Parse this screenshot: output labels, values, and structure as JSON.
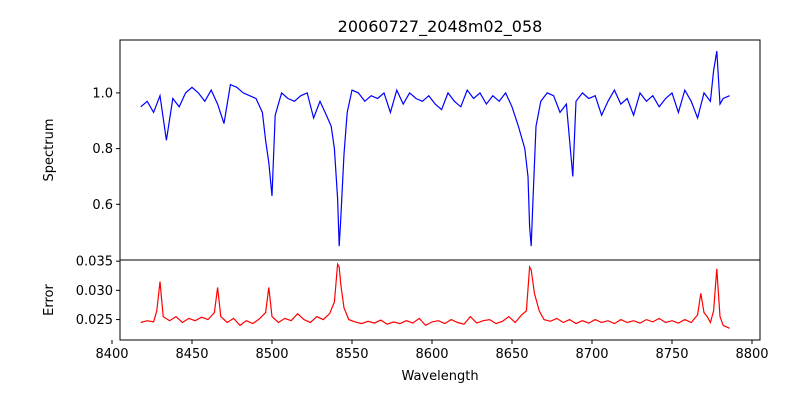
{
  "chart_data": [
    {
      "type": "line",
      "title": "20060727_2048m02_058",
      "xlabel": "",
      "ylabel": "Spectrum",
      "xlim": [
        8405,
        8805
      ],
      "ylim": [
        0.4,
        1.19
      ],
      "yticks": [
        0.6,
        0.8,
        1.0
      ],
      "ytick_labels": [
        "0.6",
        "0.8",
        "1.0"
      ],
      "series": [
        {
          "name": "Spectrum",
          "color": "#0000ff",
          "x": [
            8418,
            8422,
            8426,
            8430,
            8434,
            8438,
            8442,
            8446,
            8450,
            8454,
            8458,
            8462,
            8466,
            8470,
            8474,
            8478,
            8482,
            8486,
            8490,
            8494,
            8496,
            8498,
            8500,
            8502,
            8506,
            8510,
            8514,
            8518,
            8522,
            8526,
            8530,
            8534,
            8537,
            8539,
            8541,
            8542,
            8543,
            8545,
            8547,
            8550,
            8554,
            8558,
            8562,
            8566,
            8570,
            8574,
            8578,
            8582,
            8586,
            8590,
            8594,
            8598,
            8602,
            8606,
            8610,
            8614,
            8618,
            8622,
            8626,
            8630,
            8634,
            8638,
            8642,
            8646,
            8650,
            8654,
            8658,
            8660,
            8661,
            8662,
            8663,
            8665,
            8668,
            8672,
            8676,
            8680,
            8684,
            8688,
            8690,
            8694,
            8698,
            8702,
            8706,
            8710,
            8714,
            8718,
            8722,
            8726,
            8730,
            8734,
            8738,
            8742,
            8746,
            8750,
            8754,
            8758,
            8762,
            8766,
            8770,
            8774,
            8776,
            8778,
            8780,
            8782,
            8786
          ],
          "y": [
            0.95,
            0.97,
            0.93,
            0.99,
            0.83,
            0.98,
            0.95,
            1.0,
            1.02,
            1.0,
            0.97,
            1.01,
            0.96,
            0.89,
            1.03,
            1.02,
            1.0,
            0.99,
            0.98,
            0.93,
            0.83,
            0.75,
            0.63,
            0.92,
            1.0,
            0.98,
            0.97,
            0.99,
            1.0,
            0.91,
            0.97,
            0.92,
            0.88,
            0.8,
            0.62,
            0.45,
            0.55,
            0.78,
            0.93,
            1.01,
            1.0,
            0.97,
            0.99,
            0.98,
            1.0,
            0.93,
            1.01,
            0.96,
            1.0,
            0.98,
            0.97,
            0.99,
            0.96,
            0.94,
            1.0,
            0.97,
            0.95,
            1.01,
            0.98,
            1.0,
            0.96,
            0.99,
            0.97,
            1.0,
            0.95,
            0.88,
            0.8,
            0.7,
            0.52,
            0.45,
            0.6,
            0.88,
            0.97,
            1.0,
            0.99,
            0.93,
            0.96,
            0.7,
            0.97,
            1.0,
            0.98,
            0.99,
            0.92,
            0.97,
            1.01,
            0.96,
            0.98,
            0.92,
            1.0,
            0.97,
            0.99,
            0.95,
            0.98,
            1.0,
            0.93,
            1.01,
            0.97,
            0.91,
            1.0,
            0.97,
            1.08,
            1.15,
            0.96,
            0.98,
            0.99
          ]
        }
      ]
    },
    {
      "type": "line",
      "title": "",
      "xlabel": "Wavelength",
      "ylabel": "Error",
      "xlim": [
        8405,
        8805
      ],
      "ylim": [
        0.0215,
        0.0352
      ],
      "xticks": [
        8400,
        8450,
        8500,
        8550,
        8600,
        8650,
        8700,
        8750,
        8800
      ],
      "xtick_labels": [
        "8400",
        "8450",
        "8500",
        "8550",
        "8600",
        "8650",
        "8700",
        "8750",
        "8800"
      ],
      "yticks": [
        0.025,
        0.03,
        0.035
      ],
      "ytick_labels": [
        "0.025",
        "0.030",
        "0.035"
      ],
      "series": [
        {
          "name": "Error",
          "color": "#ff0000",
          "x": [
            8418,
            8422,
            8426,
            8428,
            8430,
            8432,
            8436,
            8440,
            8444,
            8448,
            8452,
            8456,
            8460,
            8464,
            8466,
            8468,
            8472,
            8476,
            8480,
            8484,
            8488,
            8492,
            8496,
            8498,
            8500,
            8504,
            8508,
            8512,
            8516,
            8520,
            8524,
            8528,
            8532,
            8536,
            8539,
            8541,
            8542,
            8543,
            8545,
            8548,
            8552,
            8556,
            8560,
            8564,
            8568,
            8572,
            8576,
            8580,
            8584,
            8588,
            8592,
            8596,
            8600,
            8604,
            8608,
            8612,
            8616,
            8620,
            8624,
            8628,
            8632,
            8636,
            8640,
            8644,
            8648,
            8652,
            8656,
            8659,
            8661,
            8662,
            8664,
            8667,
            8670,
            8674,
            8678,
            8682,
            8686,
            8690,
            8694,
            8698,
            8702,
            8706,
            8710,
            8714,
            8718,
            8722,
            8726,
            8730,
            8734,
            8738,
            8742,
            8746,
            8750,
            8754,
            8758,
            8762,
            8766,
            8768,
            8770,
            8772,
            8774,
            8776,
            8778,
            8780,
            8782,
            8786
          ],
          "y": [
            0.0245,
            0.0248,
            0.0246,
            0.0265,
            0.0315,
            0.0255,
            0.0248,
            0.0255,
            0.0245,
            0.0252,
            0.0248,
            0.0254,
            0.025,
            0.0262,
            0.0305,
            0.0255,
            0.0245,
            0.0252,
            0.024,
            0.0248,
            0.0243,
            0.0251,
            0.0262,
            0.0305,
            0.0255,
            0.0245,
            0.0252,
            0.0248,
            0.026,
            0.025,
            0.0245,
            0.0255,
            0.025,
            0.026,
            0.028,
            0.0345,
            0.034,
            0.031,
            0.027,
            0.025,
            0.0246,
            0.0243,
            0.0247,
            0.0244,
            0.0249,
            0.0242,
            0.0246,
            0.0243,
            0.0248,
            0.0244,
            0.0252,
            0.024,
            0.0246,
            0.0248,
            0.0243,
            0.025,
            0.0245,
            0.0242,
            0.0255,
            0.0244,
            0.0248,
            0.025,
            0.0243,
            0.0247,
            0.0255,
            0.0245,
            0.0258,
            0.0265,
            0.034,
            0.0335,
            0.0295,
            0.0265,
            0.025,
            0.0247,
            0.0252,
            0.0245,
            0.025,
            0.0243,
            0.0248,
            0.0244,
            0.025,
            0.0245,
            0.0248,
            0.0243,
            0.025,
            0.0245,
            0.0248,
            0.0244,
            0.025,
            0.0246,
            0.0252,
            0.0245,
            0.0248,
            0.0244,
            0.025,
            0.0245,
            0.0258,
            0.0295,
            0.0262,
            0.0255,
            0.0245,
            0.0265,
            0.0337,
            0.0255,
            0.024,
            0.0235
          ]
        }
      ]
    }
  ]
}
